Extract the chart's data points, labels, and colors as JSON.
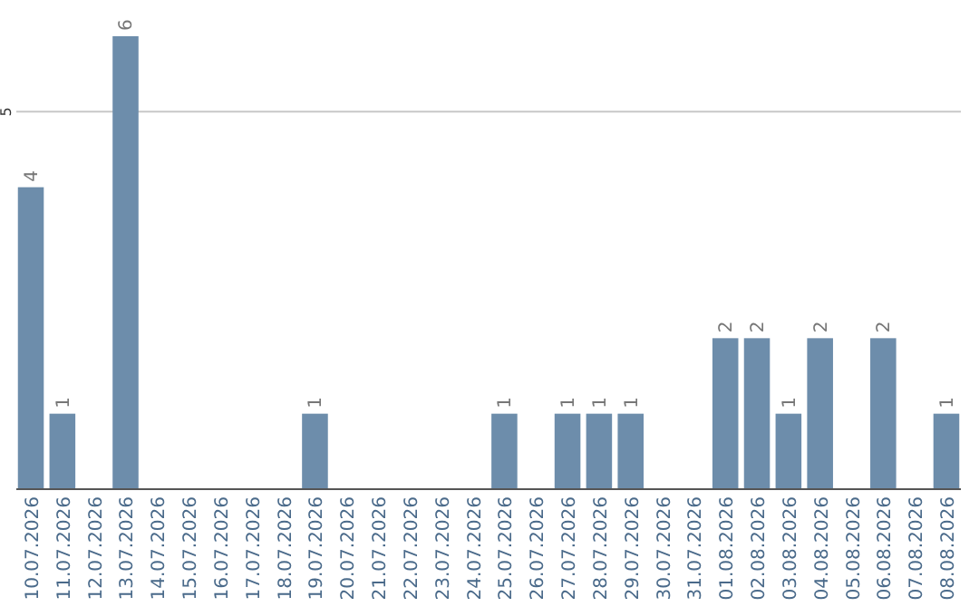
{
  "chart_data": {
    "type": "bar",
    "categories": [
      "10.07.2026",
      "11.07.2026",
      "12.07.2026",
      "13.07.2026",
      "14.07.2026",
      "15.07.2026",
      "16.07.2026",
      "17.07.2026",
      "18.07.2026",
      "19.07.2026",
      "20.07.2026",
      "21.07.2026",
      "22.07.2026",
      "23.07.2026",
      "24.07.2026",
      "25.07.2026",
      "26.07.2026",
      "27.07.2026",
      "28.07.2026",
      "29.07.2026",
      "30.07.2026",
      "31.07.2026",
      "01.08.2026",
      "02.08.2026",
      "03.08.2026",
      "04.08.2026",
      "05.08.2026",
      "06.08.2026",
      "07.08.2026",
      "08.08.2026"
    ],
    "values": [
      4,
      1,
      0,
      6,
      0,
      0,
      0,
      0,
      0,
      1,
      0,
      0,
      0,
      0,
      0,
      1,
      0,
      1,
      1,
      1,
      0,
      0,
      2,
      2,
      1,
      2,
      0,
      2,
      0,
      1
    ],
    "value_labels": [
      "4",
      "1",
      null,
      "6",
      null,
      null,
      null,
      null,
      null,
      "1",
      null,
      null,
      null,
      null,
      null,
      "1",
      null,
      "1",
      "1",
      "1",
      null,
      null,
      "2",
      "2",
      "1",
      "2",
      null,
      "2",
      null,
      "1"
    ],
    "color": "#6d8dab",
    "ylim": [
      0,
      6
    ],
    "yticks": [
      5
    ],
    "grid": "y"
  }
}
